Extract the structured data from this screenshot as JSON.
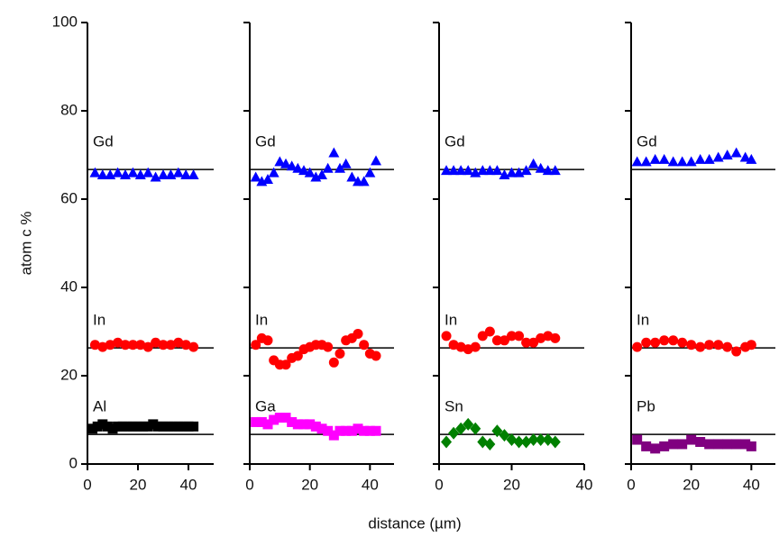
{
  "chart_data": [
    {
      "type": "scatter",
      "ylabel": "atom c %",
      "xlabel": "distance (µm)",
      "xlim": [
        0,
        50
      ],
      "xticks": [
        0,
        20,
        40
      ],
      "ylim": [
        0,
        100
      ],
      "yticks": [
        0,
        20,
        40,
        60,
        80,
        100
      ],
      "show_ytick_labels": true,
      "reference_lines": [
        66.7,
        26.3,
        6.7
      ],
      "series": [
        {
          "name": "Gd",
          "color": "#0000ff",
          "marker": "triangle",
          "x": [
            3,
            6,
            9,
            12,
            15,
            18,
            21,
            24,
            27,
            30,
            33,
            36,
            39,
            42
          ],
          "values": [
            66,
            65.5,
            65.5,
            66,
            65.5,
            66,
            65.5,
            66,
            65,
            65.5,
            65.5,
            66,
            65.5,
            65.5
          ]
        },
        {
          "name": "In",
          "color": "#ff0000",
          "marker": "circle",
          "x": [
            3,
            6,
            9,
            12,
            15,
            18,
            21,
            24,
            27,
            30,
            33,
            36,
            39,
            42
          ],
          "values": [
            27,
            26.5,
            27,
            27.5,
            27,
            27,
            27,
            26.5,
            27.5,
            27,
            27,
            27.5,
            27,
            26.5
          ]
        },
        {
          "name": "Al",
          "color": "#000000",
          "marker": "square",
          "x": [
            2,
            4,
            6,
            8,
            10,
            12,
            14,
            16,
            18,
            20,
            22,
            24,
            26,
            28,
            30,
            32,
            34,
            36,
            38,
            40,
            42
          ],
          "values": [
            8,
            8.5,
            9,
            8.5,
            8,
            8.5,
            8.5,
            8.5,
            8.5,
            8.5,
            8.5,
            8.5,
            9,
            8.5,
            8.5,
            8.5,
            8.5,
            8.5,
            8.5,
            8.5,
            8.5
          ]
        }
      ]
    },
    {
      "type": "scatter",
      "xlim": [
        0,
        48
      ],
      "xticks": [
        0,
        20,
        40
      ],
      "ylim": [
        0,
        100
      ],
      "yticks": [
        0,
        20,
        40,
        60,
        80,
        100
      ],
      "show_ytick_labels": false,
      "reference_lines": [
        66.7,
        26.3,
        6.7
      ],
      "series": [
        {
          "name": "Gd",
          "color": "#0000ff",
          "marker": "triangle",
          "x": [
            2,
            4,
            6,
            8,
            10,
            12,
            14,
            16,
            18,
            20,
            22,
            24,
            26,
            28,
            30,
            32,
            34,
            36,
            38,
            40,
            42
          ],
          "values": [
            65,
            64,
            64.5,
            66,
            68.5,
            68,
            67.5,
            67,
            66.5,
            66,
            65,
            65.5,
            67,
            70.5,
            67,
            68,
            65,
            64,
            64,
            66,
            68.7
          ]
        },
        {
          "name": "In",
          "color": "#ff0000",
          "marker": "circle",
          "x": [
            2,
            4,
            6,
            8,
            10,
            12,
            14,
            16,
            18,
            20,
            22,
            24,
            26,
            28,
            30,
            32,
            34,
            36,
            38,
            40,
            42
          ],
          "values": [
            27,
            28.5,
            28,
            23.5,
            22.5,
            22.5,
            24,
            24.5,
            26,
            26.5,
            27,
            27,
            26.5,
            23,
            25,
            28,
            28.5,
            29.5,
            27,
            25,
            24.5
          ]
        },
        {
          "name": "Ga",
          "color": "#ff00ff",
          "marker": "square",
          "x": [
            2,
            4,
            6,
            8,
            10,
            12,
            14,
            16,
            18,
            20,
            22,
            24,
            26,
            28,
            30,
            32,
            34,
            36,
            38,
            40,
            42
          ],
          "values": [
            9.5,
            9.5,
            9,
            10,
            10.5,
            10.5,
            9.5,
            9,
            9,
            9,
            8.5,
            8,
            7.5,
            6.5,
            7.5,
            7.5,
            7.5,
            8,
            7.5,
            7.5,
            7.5
          ]
        }
      ]
    },
    {
      "type": "scatter",
      "xlim": [
        0,
        40
      ],
      "xticks": [
        0,
        20,
        40
      ],
      "ylim": [
        0,
        100
      ],
      "yticks": [
        0,
        20,
        40,
        60,
        80,
        100
      ],
      "show_ytick_labels": false,
      "reference_lines": [
        66.7,
        26.3,
        6.7
      ],
      "series": [
        {
          "name": "Gd",
          "color": "#0000ff",
          "marker": "triangle",
          "x": [
            2,
            4,
            6,
            8,
            10,
            12,
            14,
            16,
            18,
            20,
            22,
            24,
            26,
            28,
            30,
            32
          ],
          "values": [
            66.5,
            66.5,
            66.5,
            66.5,
            66,
            66.5,
            66.5,
            66.5,
            65.5,
            66,
            66,
            66.5,
            68,
            67,
            66.5,
            66.5
          ]
        },
        {
          "name": "In",
          "color": "#ff0000",
          "marker": "circle",
          "x": [
            2,
            4,
            6,
            8,
            10,
            12,
            14,
            16,
            18,
            20,
            22,
            24,
            26,
            28,
            30,
            32
          ],
          "values": [
            29,
            27,
            26.5,
            26,
            26.5,
            29,
            30,
            28,
            28,
            29,
            29,
            27.5,
            27.5,
            28.5,
            29,
            28.5
          ]
        },
        {
          "name": "Sn",
          "color": "#008000",
          "marker": "diamond",
          "x": [
            2,
            4,
            6,
            8,
            10,
            12,
            14,
            16,
            18,
            20,
            22,
            24,
            26,
            28,
            30,
            32
          ],
          "values": [
            5,
            7,
            8,
            9,
            8,
            5,
            4.5,
            7.5,
            6.5,
            5.5,
            5,
            5,
            5.5,
            5.5,
            5.5,
            5
          ]
        }
      ]
    },
    {
      "type": "scatter",
      "xlim": [
        0,
        48
      ],
      "xticks": [
        0,
        20,
        40
      ],
      "ylim": [
        0,
        100
      ],
      "yticks": [
        0,
        20,
        40,
        60,
        80,
        100
      ],
      "show_ytick_labels": false,
      "reference_lines": [
        66.7,
        26.3,
        6.7
      ],
      "series": [
        {
          "name": "Gd",
          "color": "#0000ff",
          "marker": "triangle",
          "x": [
            2,
            5,
            8,
            11,
            14,
            17,
            20,
            23,
            26,
            29,
            32,
            35,
            38,
            40
          ],
          "values": [
            68.5,
            68.5,
            69,
            69,
            68.5,
            68.5,
            68.5,
            69,
            69,
            69.5,
            70,
            70.5,
            69.5,
            69
          ]
        },
        {
          "name": "In",
          "color": "#ff0000",
          "marker": "circle",
          "x": [
            2,
            5,
            8,
            11,
            14,
            17,
            20,
            23,
            26,
            29,
            32,
            35,
            38,
            40
          ],
          "values": [
            26.5,
            27.5,
            27.5,
            28,
            28,
            27.5,
            27,
            26.5,
            27,
            27,
            26.5,
            25.5,
            26.5,
            27
          ]
        },
        {
          "name": "Pb",
          "color": "#800080",
          "marker": "square",
          "x": [
            2,
            5,
            8,
            11,
            14,
            17,
            20,
            23,
            26,
            29,
            32,
            35,
            38,
            40
          ],
          "values": [
            5.5,
            4,
            3.5,
            4,
            4.5,
            4.5,
            5.5,
            5,
            4.5,
            4.5,
            4.5,
            4.5,
            4.5,
            4
          ]
        }
      ]
    }
  ]
}
